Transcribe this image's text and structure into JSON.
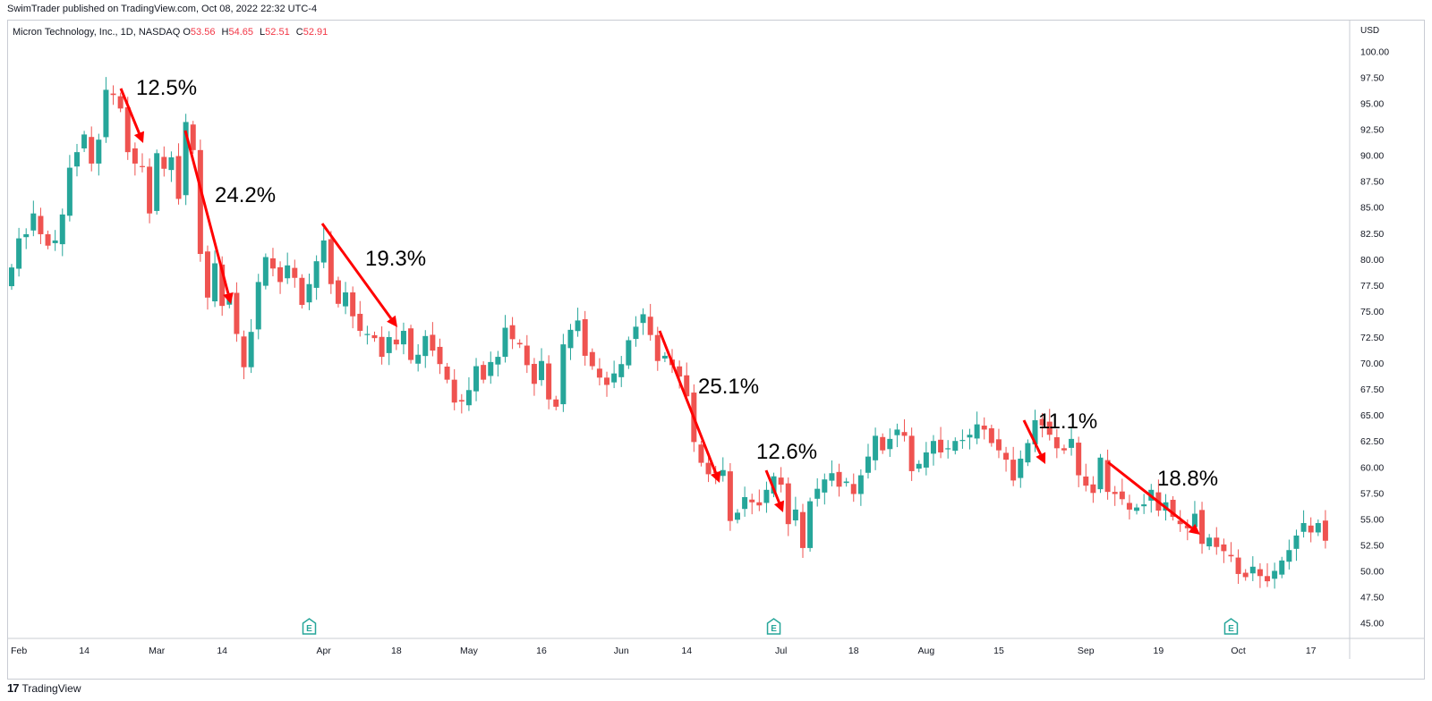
{
  "header": {
    "published": "SwimTrader published on TradingView.com, Oct 08, 2022 22:32 UTC-4"
  },
  "legend": {
    "symbol": "Micron Technology, Inc., 1D, NASDAQ",
    "open_label": "O",
    "open": "53.56",
    "high_label": "H",
    "high": "54.65",
    "low_label": "L",
    "low": "52.51",
    "close_label": "C",
    "close": "52.91"
  },
  "footer": {
    "logo_text": "TradingView",
    "logo_mark": "17"
  },
  "colors": {
    "up": "#26a69a",
    "down": "#ef5350",
    "arrow": "#ff0000",
    "grid": "#e0e3eb",
    "axis_text": "#131722"
  },
  "chart_data": {
    "type": "candlestick",
    "currency_label": "USD",
    "ylim": [
      43.5,
      101.5
    ],
    "y_ticks": [
      "100.00",
      "97.50",
      "95.00",
      "92.50",
      "90.00",
      "87.50",
      "85.00",
      "82.50",
      "80.00",
      "77.50",
      "75.00",
      "72.50",
      "70.00",
      "67.50",
      "65.00",
      "62.50",
      "60.00",
      "57.50",
      "55.00",
      "52.50",
      "50.00",
      "47.50",
      "45.00"
    ],
    "x_ticks": [
      {
        "label": "Feb",
        "index": 1
      },
      {
        "label": "14",
        "index": 10
      },
      {
        "label": "Mar",
        "index": 20
      },
      {
        "label": "14",
        "index": 29
      },
      {
        "label": "Apr",
        "index": 43
      },
      {
        "label": "18",
        "index": 53
      },
      {
        "label": "May",
        "index": 63
      },
      {
        "label": "16",
        "index": 73
      },
      {
        "label": "Jun",
        "index": 84
      },
      {
        "label": "14",
        "index": 93
      },
      {
        "label": "Jul",
        "index": 106
      },
      {
        "label": "18",
        "index": 116
      },
      {
        "label": "Aug",
        "index": 126
      },
      {
        "label": "15",
        "index": 136
      },
      {
        "label": "Sep",
        "index": 148
      },
      {
        "label": "19",
        "index": 158
      },
      {
        "label": "Oct",
        "index": 169
      },
      {
        "label": "17",
        "index": 179
      }
    ],
    "earnings_markers": [
      {
        "label": "E",
        "index": 41
      },
      {
        "label": "E",
        "index": 105
      },
      {
        "label": "E",
        "index": 168
      }
    ],
    "closes": [
      79.2,
      82.0,
      82.4,
      84.4,
      82.4,
      81.3,
      81.8,
      84.3,
      88.8,
      90.3,
      92.0,
      89.2,
      91.5,
      96.3,
      95.8,
      94.5,
      90.3,
      89.2,
      88.9,
      84.4,
      90.2,
      88.7,
      89.8,
      85.8,
      93.2,
      90.5,
      80.5,
      76.3,
      79.6,
      75.5,
      76.4,
      72.8,
      69.6,
      73.0,
      77.8,
      80.2,
      79.1,
      77.8,
      79.4,
      78.2,
      75.6,
      77.6,
      79.8,
      81.8,
      77.6,
      75.7,
      76.8,
      74.5,
      73.1,
      72.8,
      72.4,
      70.6,
      72.5,
      71.8,
      73.1,
      70.3,
      70.8,
      72.6,
      71.2,
      69.9,
      68.4,
      66.2,
      66.3,
      67.4,
      69.7,
      68.4,
      70.1,
      70.6,
      73.4,
      72.3,
      71.8,
      69.8,
      68.0,
      70.2,
      66.5,
      65.8,
      71.8,
      73.2,
      74.1,
      70.7,
      69.7,
      68.6,
      67.9,
      69.0,
      69.9,
      72.2,
      73.5,
      74.7,
      72.7,
      70.2,
      70.7,
      69.8,
      68.7,
      66.8,
      62.4,
      60.4,
      59.3,
      59.5,
      59.7,
      54.8,
      55.6,
      57.1,
      56.6,
      56.3,
      57.8,
      59.1,
      58.3,
      54.5,
      55.9,
      52.2,
      56.7,
      57.9,
      58.8,
      59.4,
      58.1,
      58.6,
      57.4,
      59.2,
      61.0,
      63.0,
      61.6,
      62.7,
      63.6,
      63.0,
      59.6,
      60.3,
      61.4,
      62.5,
      61.4,
      61.8,
      62.5,
      62.6,
      63.1,
      64.1,
      63.6,
      62.3,
      61.6,
      60.7,
      58.7,
      60.8,
      62.3,
      64.5,
      64.0,
      63.1,
      61.8,
      61.6,
      62.7,
      59.2,
      58.2,
      57.5,
      60.9,
      57.6,
      57.4,
      56.9,
      55.9,
      56.1,
      56.4,
      57.8,
      55.8,
      56.6,
      55.2,
      54.5,
      54.1,
      55.5,
      52.6,
      53.2,
      52.3,
      51.9,
      51.4,
      49.7,
      49.4,
      50.4,
      49.5,
      49.0,
      50.0,
      51.0,
      52.0,
      53.4,
      54.6,
      53.7,
      54.6,
      52.9
    ],
    "annotations": [
      {
        "label": "12.5%"
      },
      {
        "label": "24.2%"
      },
      {
        "label": "19.3%"
      },
      {
        "label": "25.1%"
      },
      {
        "label": "12.6%"
      },
      {
        "label": "11.1%"
      },
      {
        "label": "18.8%"
      }
    ]
  }
}
